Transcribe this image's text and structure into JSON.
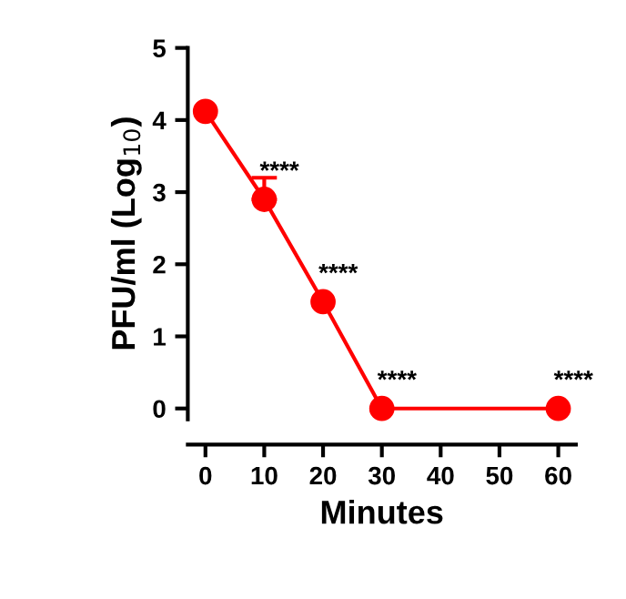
{
  "chart_data": {
    "type": "line",
    "xlabel": "Minutes",
    "ylabel": "PFU/ml (Log$_{10}$)",
    "x": [
      0,
      10,
      20,
      30,
      60
    ],
    "series": [
      {
        "color": "#ff0000",
        "values": [
          4.12,
          2.9,
          1.48,
          0,
          0
        ],
        "errors": [
          null,
          [
            2.9,
            3.2
          ],
          null,
          null,
          null
        ]
      }
    ],
    "xlim": [
      -3,
      63
    ],
    "xticks": [
      0,
      10,
      20,
      30,
      40,
      50,
      60
    ],
    "ylim": [
      -0.15,
      5
    ],
    "yticks": [
      0,
      1,
      2,
      3,
      4,
      5
    ],
    "marker": "circle",
    "line_style": "solid",
    "grid": false,
    "annotations": [
      {
        "text": "****",
        "x": 10,
        "y": 2.9
      },
      {
        "text": "****",
        "x": 20,
        "y": 1.48
      },
      {
        "text": "****",
        "x": 30,
        "y": 0
      },
      {
        "text": "****",
        "x": 60,
        "y": 0
      }
    ]
  }
}
